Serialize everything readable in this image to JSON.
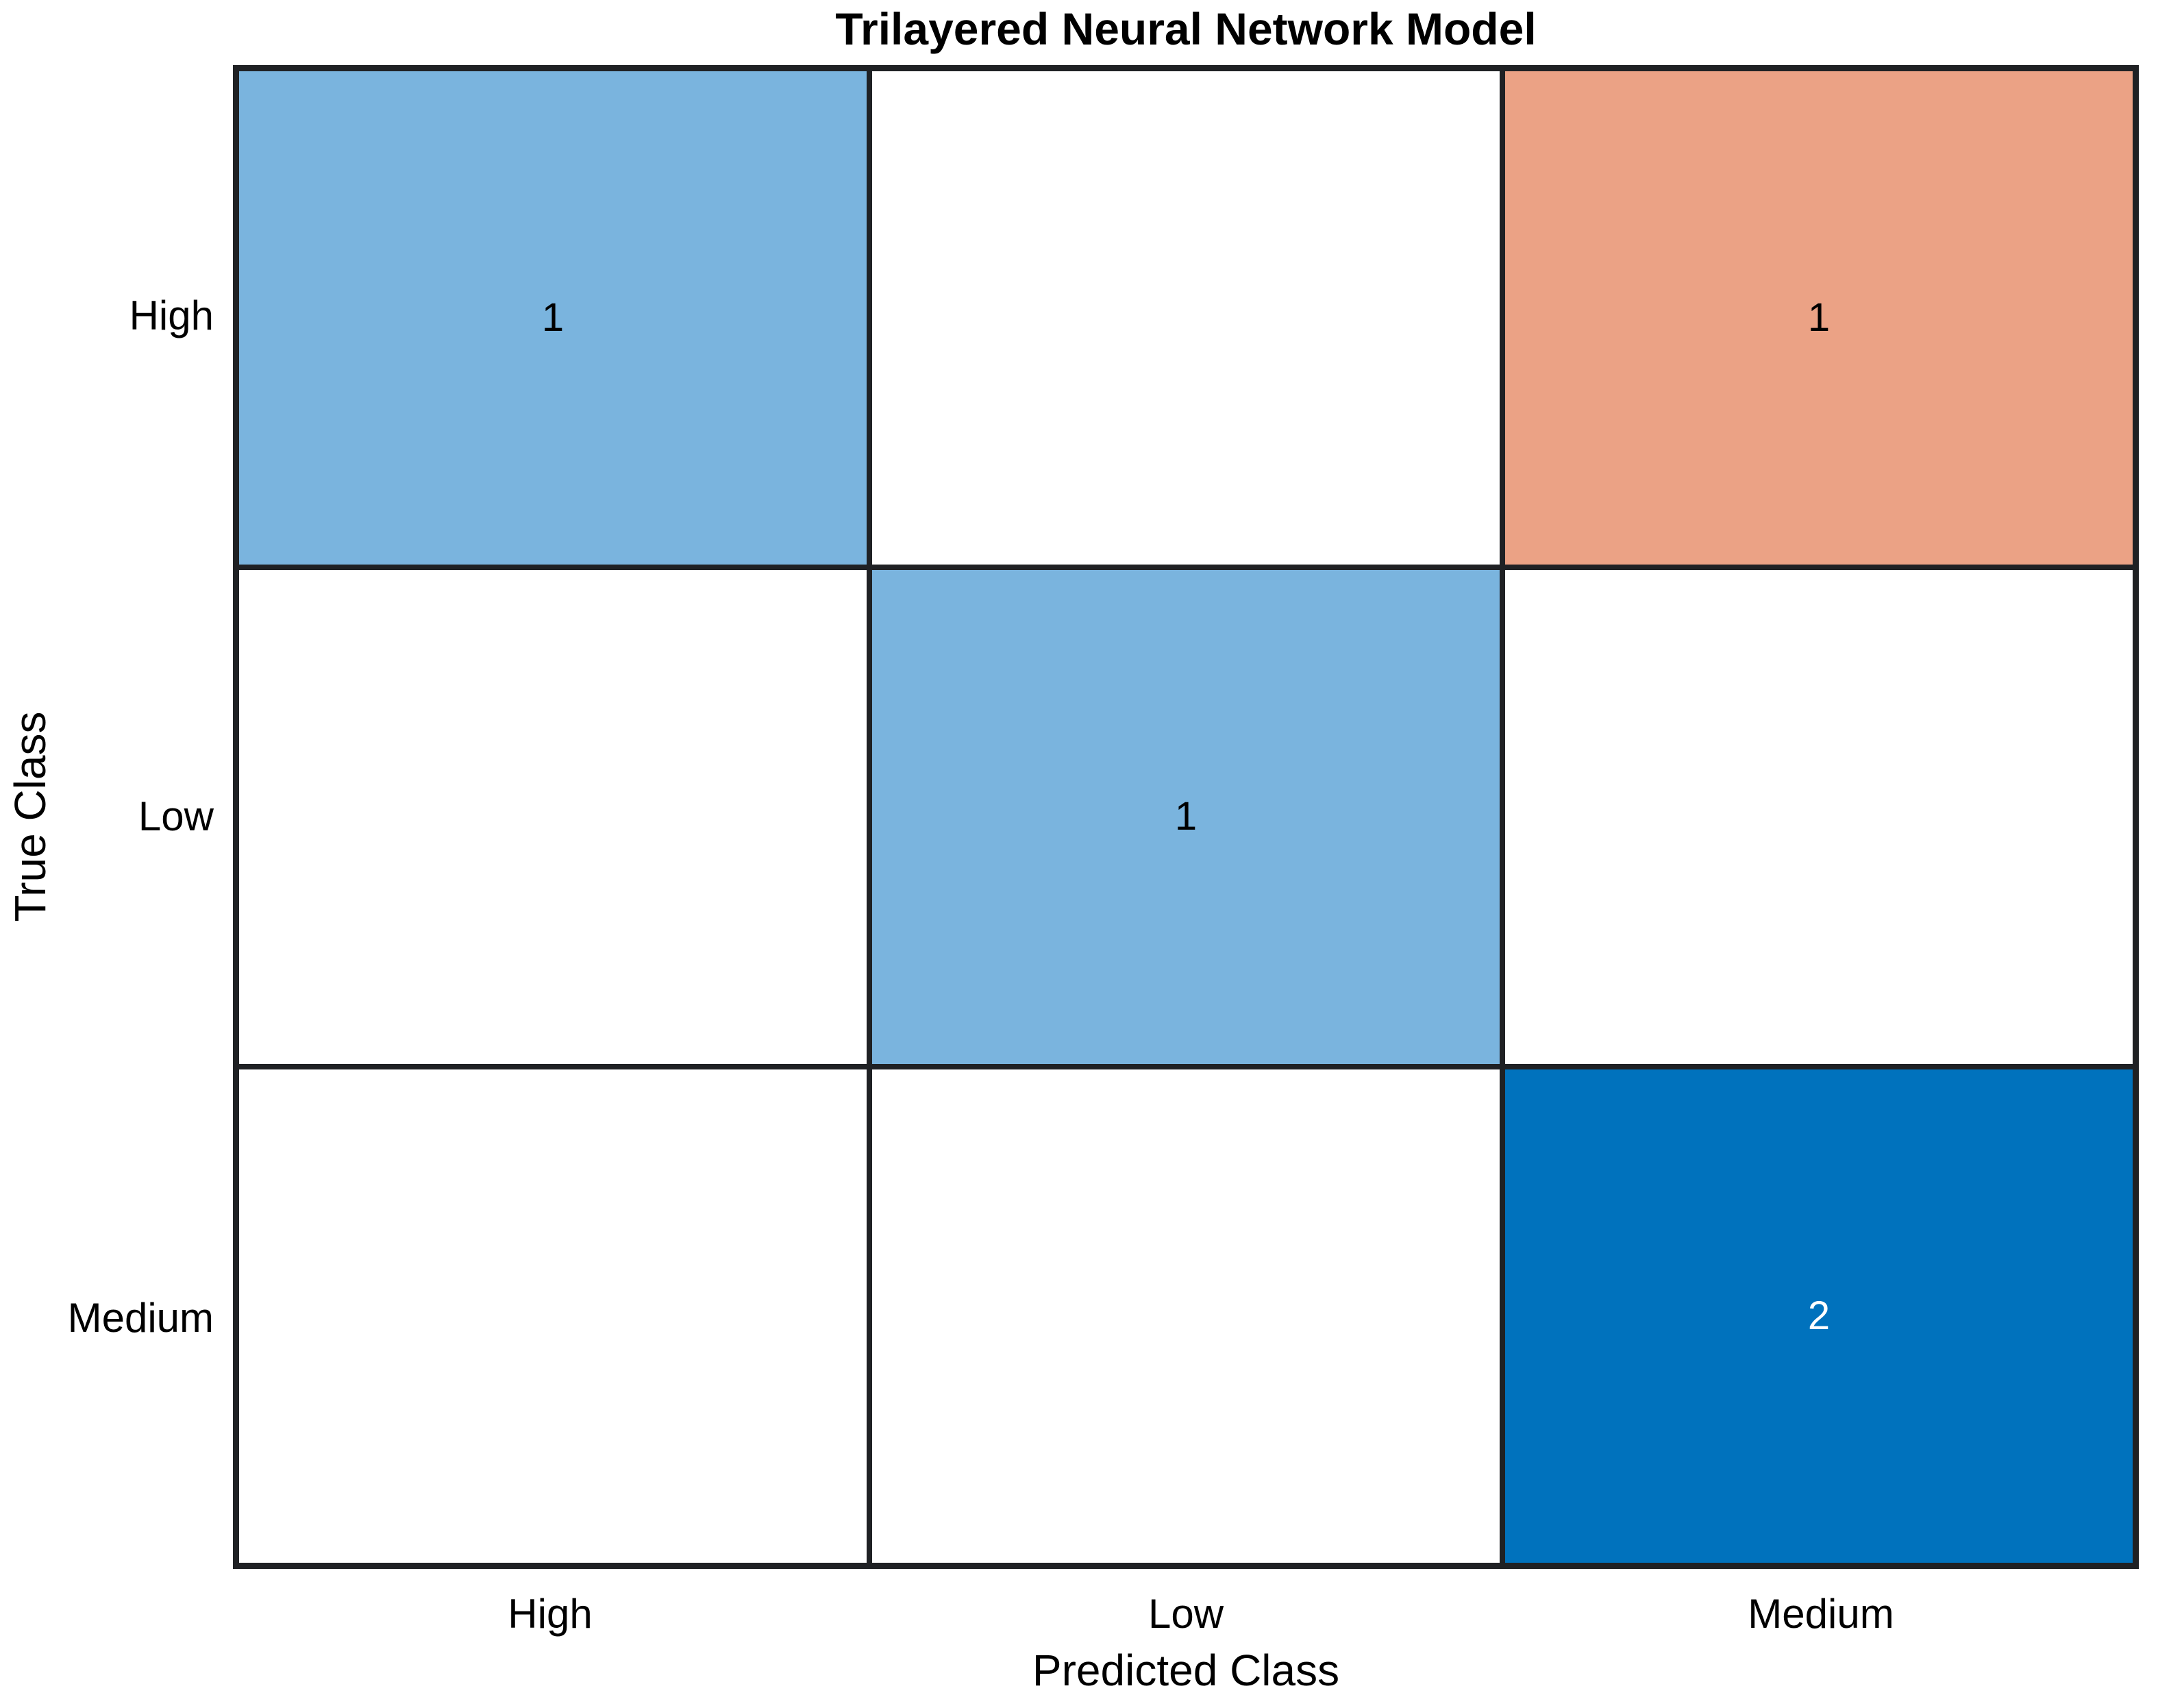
{
  "chart_data": {
    "type": "heatmap",
    "subtype": "confusion-matrix",
    "title": "Trilayered Neural Network Model",
    "xlabel": "Predicted Class",
    "ylabel": "True Class",
    "x_categories": [
      "High",
      "Low",
      "Medium"
    ],
    "y_categories": [
      "High",
      "Low",
      "Medium"
    ],
    "matrix": [
      [
        1,
        0,
        1
      ],
      [
        0,
        1,
        0
      ],
      [
        0,
        0,
        2
      ]
    ],
    "cell_colors": [
      [
        "#7ab4de",
        "#ffffff",
        "#eba285"
      ],
      [
        "#ffffff",
        "#7ab4de",
        "#ffffff"
      ],
      [
        "#ffffff",
        "#ffffff",
        "#0072bd"
      ]
    ],
    "cell_text_colors": [
      [
        "#000000",
        "#000000",
        "#000000"
      ],
      [
        "#000000",
        "#000000",
        "#000000"
      ],
      [
        "#ffffff",
        "#ffffff",
        "#ffffff"
      ]
    ],
    "empty_cell_color": "#ffffff",
    "grid_color": "#1f2124",
    "background_color": "#ffffff",
    "diagonal_color": "#0072bd",
    "off_diagonal_color": "#d95319",
    "legend": "none",
    "grid_visible": true
  }
}
